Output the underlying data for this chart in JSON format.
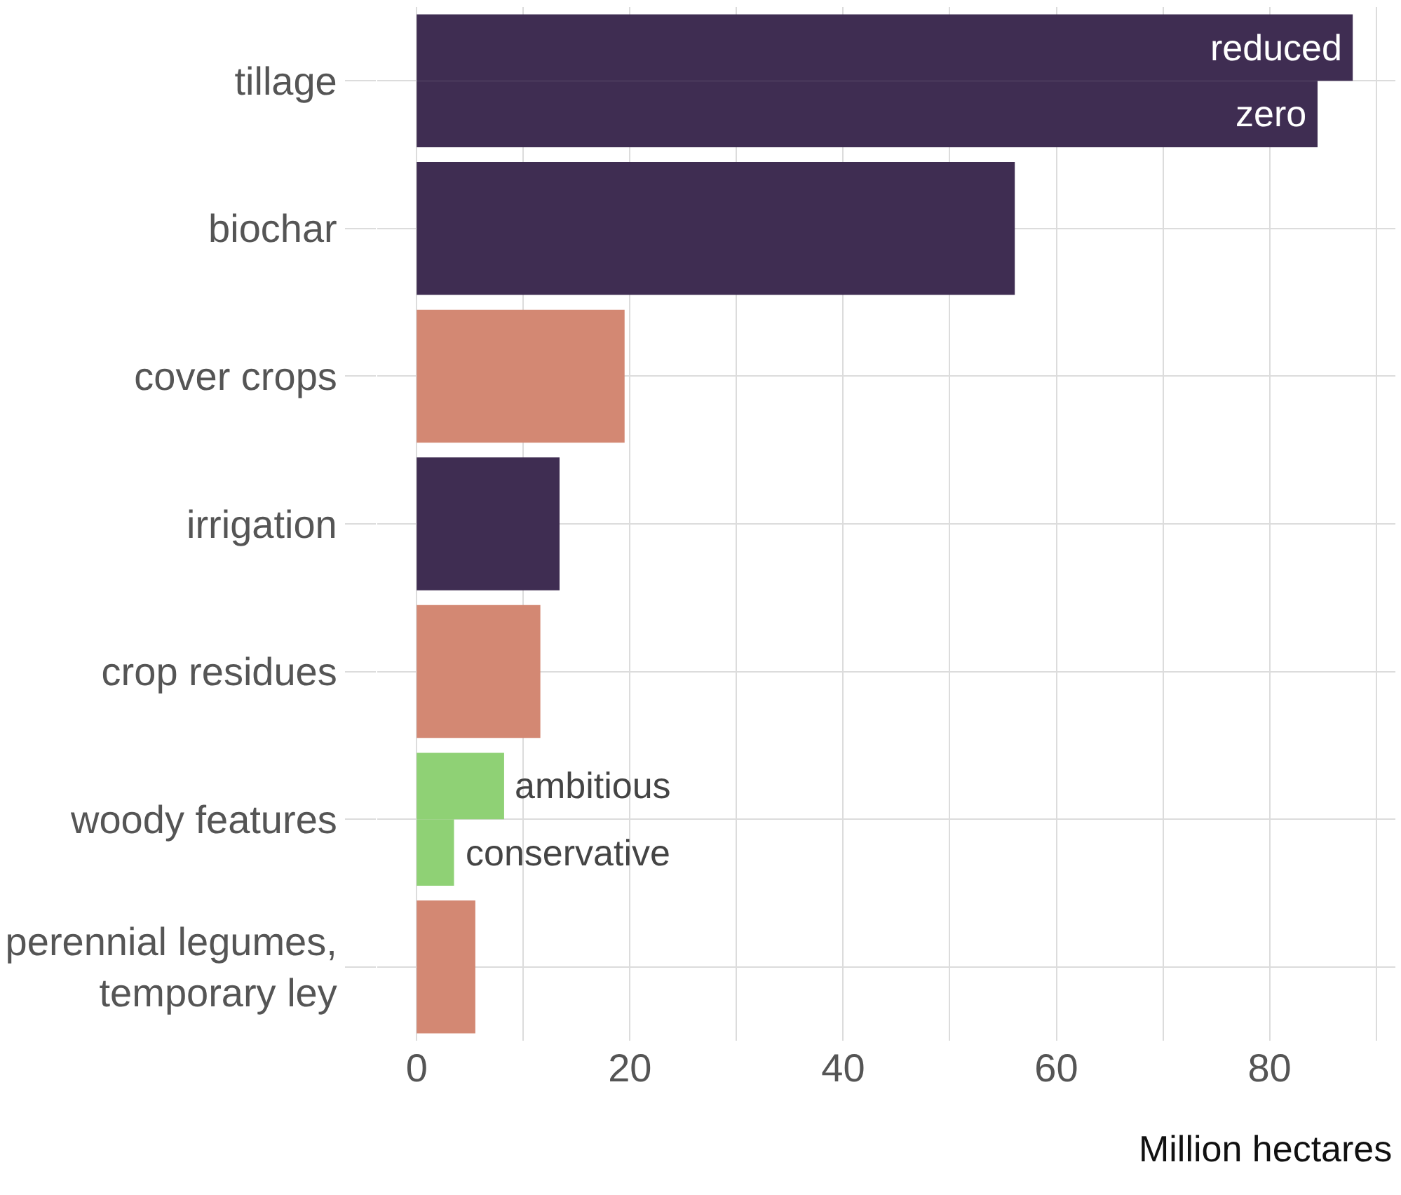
{
  "chart_data": {
    "type": "bar",
    "orientation": "horizontal",
    "xlabel": "Million hectares",
    "categories": [
      "tillage",
      "biochar",
      "cover crops",
      "irrigation",
      "crop residues",
      "woody features",
      "perennial legumes,\ntemporary ley"
    ],
    "series": [
      {
        "colors": [
          "#3f2d52",
          "#3f2d52",
          "#d38873",
          "#3f2d52",
          "#d38873",
          "#8fd175",
          "#d38873"
        ],
        "values": [
          87.8,
          56.1,
          19.5,
          13.4,
          11.6,
          8.2,
          5.5
        ]
      },
      {
        "colors": [
          "#3f2d52",
          null,
          null,
          null,
          null,
          "#8fd175",
          null
        ],
        "values": [
          84.5,
          null,
          null,
          null,
          null,
          3.5,
          null
        ]
      }
    ],
    "annotations": [
      {
        "text": "reduced",
        "x": 87.8,
        "y": "tillage"
      },
      {
        "text": "zero",
        "x": 84.5,
        "y": "tillage"
      },
      {
        "text": "ambitious",
        "x": 8.2,
        "y": "woody features"
      },
      {
        "text": "conservative",
        "x": 3.5,
        "y": "woody features"
      }
    ],
    "xlim": [
      -3.7,
      91.8
    ],
    "xticks": [
      0,
      {
        "value": 10,
        "label": null
      },
      20,
      {
        "value": 30,
        "label": null
      },
      40,
      {
        "value": 50,
        "label": null
      },
      60,
      {
        "value": 70,
        "label": null
      },
      80,
      {
        "value": 90,
        "label": null
      }
    ],
    "grid": true
  }
}
